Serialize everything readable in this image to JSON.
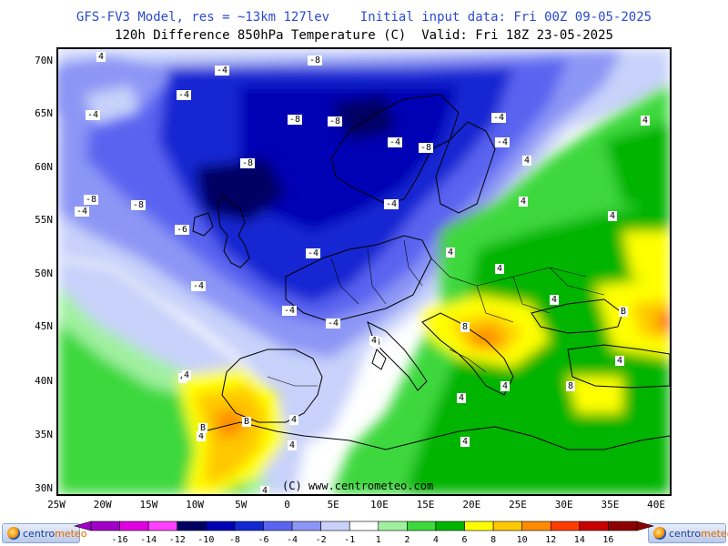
{
  "header": {
    "title_line1": "GFS-FV3 Model, res = ~13km 127lev    Initial input data: Fri 00Z 09-05-2025",
    "title_line2": "120h Difference 850hPa Temperature (C)  Valid: Fri 18Z 23-05-2025"
  },
  "map": {
    "lat_labels": [
      "70N",
      "65N",
      "60N",
      "55N",
      "50N",
      "45N",
      "40N",
      "35N",
      "30N"
    ],
    "lon_labels": [
      "25W",
      "20W",
      "15W",
      "10W",
      "5W",
      "0",
      "5E",
      "10E",
      "15E",
      "20E",
      "25E",
      "30E",
      "35E",
      "40E"
    ],
    "copyright": "(C) www.centrometeo.com",
    "contour_labels": [
      {
        "text": "4"
      },
      {
        "text": "-4"
      },
      {
        "text": "-8"
      },
      {
        "text": "-4"
      },
      {
        "text": "-4"
      },
      {
        "text": "-8"
      },
      {
        "text": "-8"
      },
      {
        "text": "-4"
      },
      {
        "text": "-8"
      },
      {
        "text": "-4"
      },
      {
        "text": "-4"
      },
      {
        "text": "-8"
      },
      {
        "text": "-8"
      },
      {
        "text": "-4"
      },
      {
        "text": "-8"
      },
      {
        "text": "-6"
      },
      {
        "text": "-4"
      },
      {
        "text": "-4"
      },
      {
        "text": "-4"
      },
      {
        "text": "-4"
      },
      {
        "text": "-4"
      },
      {
        "text": "4"
      },
      {
        "text": "4"
      },
      {
        "text": "4"
      },
      {
        "text": "4"
      },
      {
        "text": "4"
      },
      {
        "text": "4"
      },
      {
        "text": "4"
      },
      {
        "text": "4"
      },
      {
        "text": "8"
      },
      {
        "text": "4"
      },
      {
        "text": "4"
      },
      {
        "text": "4"
      },
      {
        "text": "B"
      },
      {
        "text": "B"
      },
      {
        "text": "B"
      },
      {
        "text": "4"
      },
      {
        "text": "8"
      },
      {
        "text": "4"
      },
      {
        "text": "4"
      },
      {
        "text": "4"
      },
      {
        "text": "4"
      },
      {
        "text": "4"
      },
      {
        "text": "4"
      },
      {
        "text": "4"
      },
      {
        "text": "4"
      },
      {
        "text": "4"
      }
    ]
  },
  "legend": {
    "levels": [
      "-16",
      "-14",
      "-12",
      "-10",
      "-8",
      "-6",
      "-4",
      "-2",
      "-1",
      "1",
      "2",
      "4",
      "6",
      "8",
      "10",
      "12",
      "14",
      "16"
    ],
    "colors": [
      "#a000c8",
      "#e000e0",
      "#ff40ff",
      "#000064",
      "#0000b4",
      "#1428d2",
      "#5a64f0",
      "#8c96f5",
      "#c8d2fa",
      "#ffffff",
      "#a0f0a0",
      "#3cd83c",
      "#00b400",
      "#ffff00",
      "#ffc800",
      "#ff8c00",
      "#ff3c00",
      "#c80000",
      "#8c0000"
    ],
    "logo_left": {
      "text_a": "centro",
      "text_b": "meteo"
    },
    "logo_right": {
      "text_a": "centro",
      "text_b": "meteo"
    }
  }
}
